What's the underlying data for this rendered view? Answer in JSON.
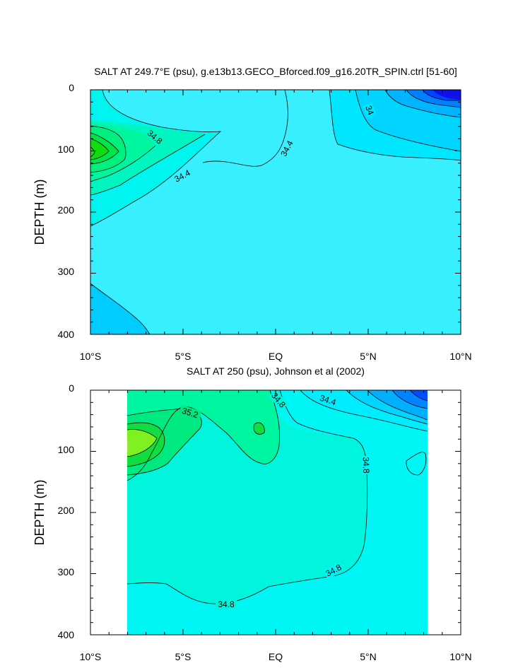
{
  "chart_data": [
    {
      "type": "contour",
      "title": "SALT AT 249.7°E (psu), g.e13b13.GECO_Bforced.f09_g16.20TR_SPIN.ctrl [51-60]",
      "xlabel": "",
      "ylabel": "DEPTH (m)",
      "x_ticks": [
        "10°S",
        "5°S",
        "EQ",
        "5°N",
        "10°N"
      ],
      "y_ticks": [
        "0",
        "100",
        "200",
        "300",
        "400"
      ],
      "xlim": [
        -10,
        10
      ],
      "ylim": [
        0,
        400
      ],
      "contour_labels": [
        {
          "text": "34.8",
          "x": -6.6,
          "y": 82
        },
        {
          "text": "34.4",
          "x": -5.0,
          "y": 150
        },
        {
          "text": "34.4",
          "x": 0.6,
          "y": 100
        },
        {
          "text": "34",
          "x": 5.1,
          "y": 35
        }
      ]
    },
    {
      "type": "contour",
      "title": "SALT AT 250 (psu), Johnson et al (2002)",
      "xlabel": "",
      "ylabel": "DEPTH (m)",
      "x_ticks": [
        "10°S",
        "5°S",
        "EQ",
        "5°N",
        "10°N"
      ],
      "y_ticks": [
        "0",
        "100",
        "200",
        "300",
        "400"
      ],
      "xlim": [
        -10,
        10
      ],
      "ylim": [
        0,
        400
      ],
      "data_extent_x": [
        -8,
        8.2
      ],
      "contour_labels": [
        {
          "text": "35.2",
          "x": -4.7,
          "y": 40
        },
        {
          "text": "34.8",
          "x": 0.2,
          "y": 18
        },
        {
          "text": "34.4",
          "x": 2.9,
          "y": 18
        },
        {
          "text": "34.8",
          "x": 4.9,
          "y": 125
        },
        {
          "text": "34.8",
          "x": 3.1,
          "y": 300
        },
        {
          "text": "34.8",
          "x": -2.6,
          "y": 351
        }
      ]
    }
  ]
}
